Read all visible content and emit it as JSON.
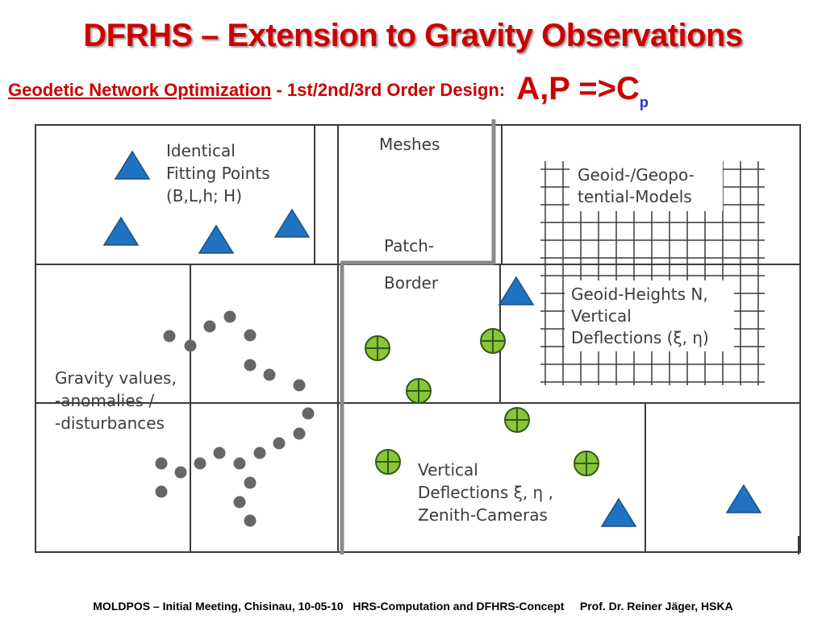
{
  "title": "DFRHS – Extension to Gravity Observations",
  "subtitle": {
    "part1": "Geodetic Network Optimization",
    "part2": " -  1st/2nd/3rd Order Design: ",
    "formula": "A,P =>C",
    "formula_sub": "p"
  },
  "diagram": {
    "fitting_points_label": [
      "Identical",
      "Fitting Points",
      "(B,L,h; H)"
    ],
    "meshes_label": "Meshes",
    "patch_label": "Patch-",
    "border_label": "Border",
    "geoid_models_label": [
      "Geoid-/Geopo-",
      "tential-Models"
    ],
    "geoid_heights_label": [
      "Geoid-Heights N,",
      "Vertical",
      "Deflections (ξ, η)"
    ],
    "gravity_label": [
      "Gravity values,",
      "-anomalies /",
      "-disturbances"
    ],
    "vertical_defl_label": [
      "Vertical",
      "Deflections ξ, η ,",
      "Zenith-Cameras"
    ],
    "colors": {
      "triangle": "#1f73c0",
      "zenith_marker": "#8ac43a",
      "gravity_dot": "#666666",
      "lines": "#3a3a3a"
    }
  },
  "footer": "MOLDPOS – Initial Meeting, Chisinau, 10-05-10   HRS-Computation and DFHRS-Concept     Prof. Dr. Reiner Jäger, HSKA"
}
